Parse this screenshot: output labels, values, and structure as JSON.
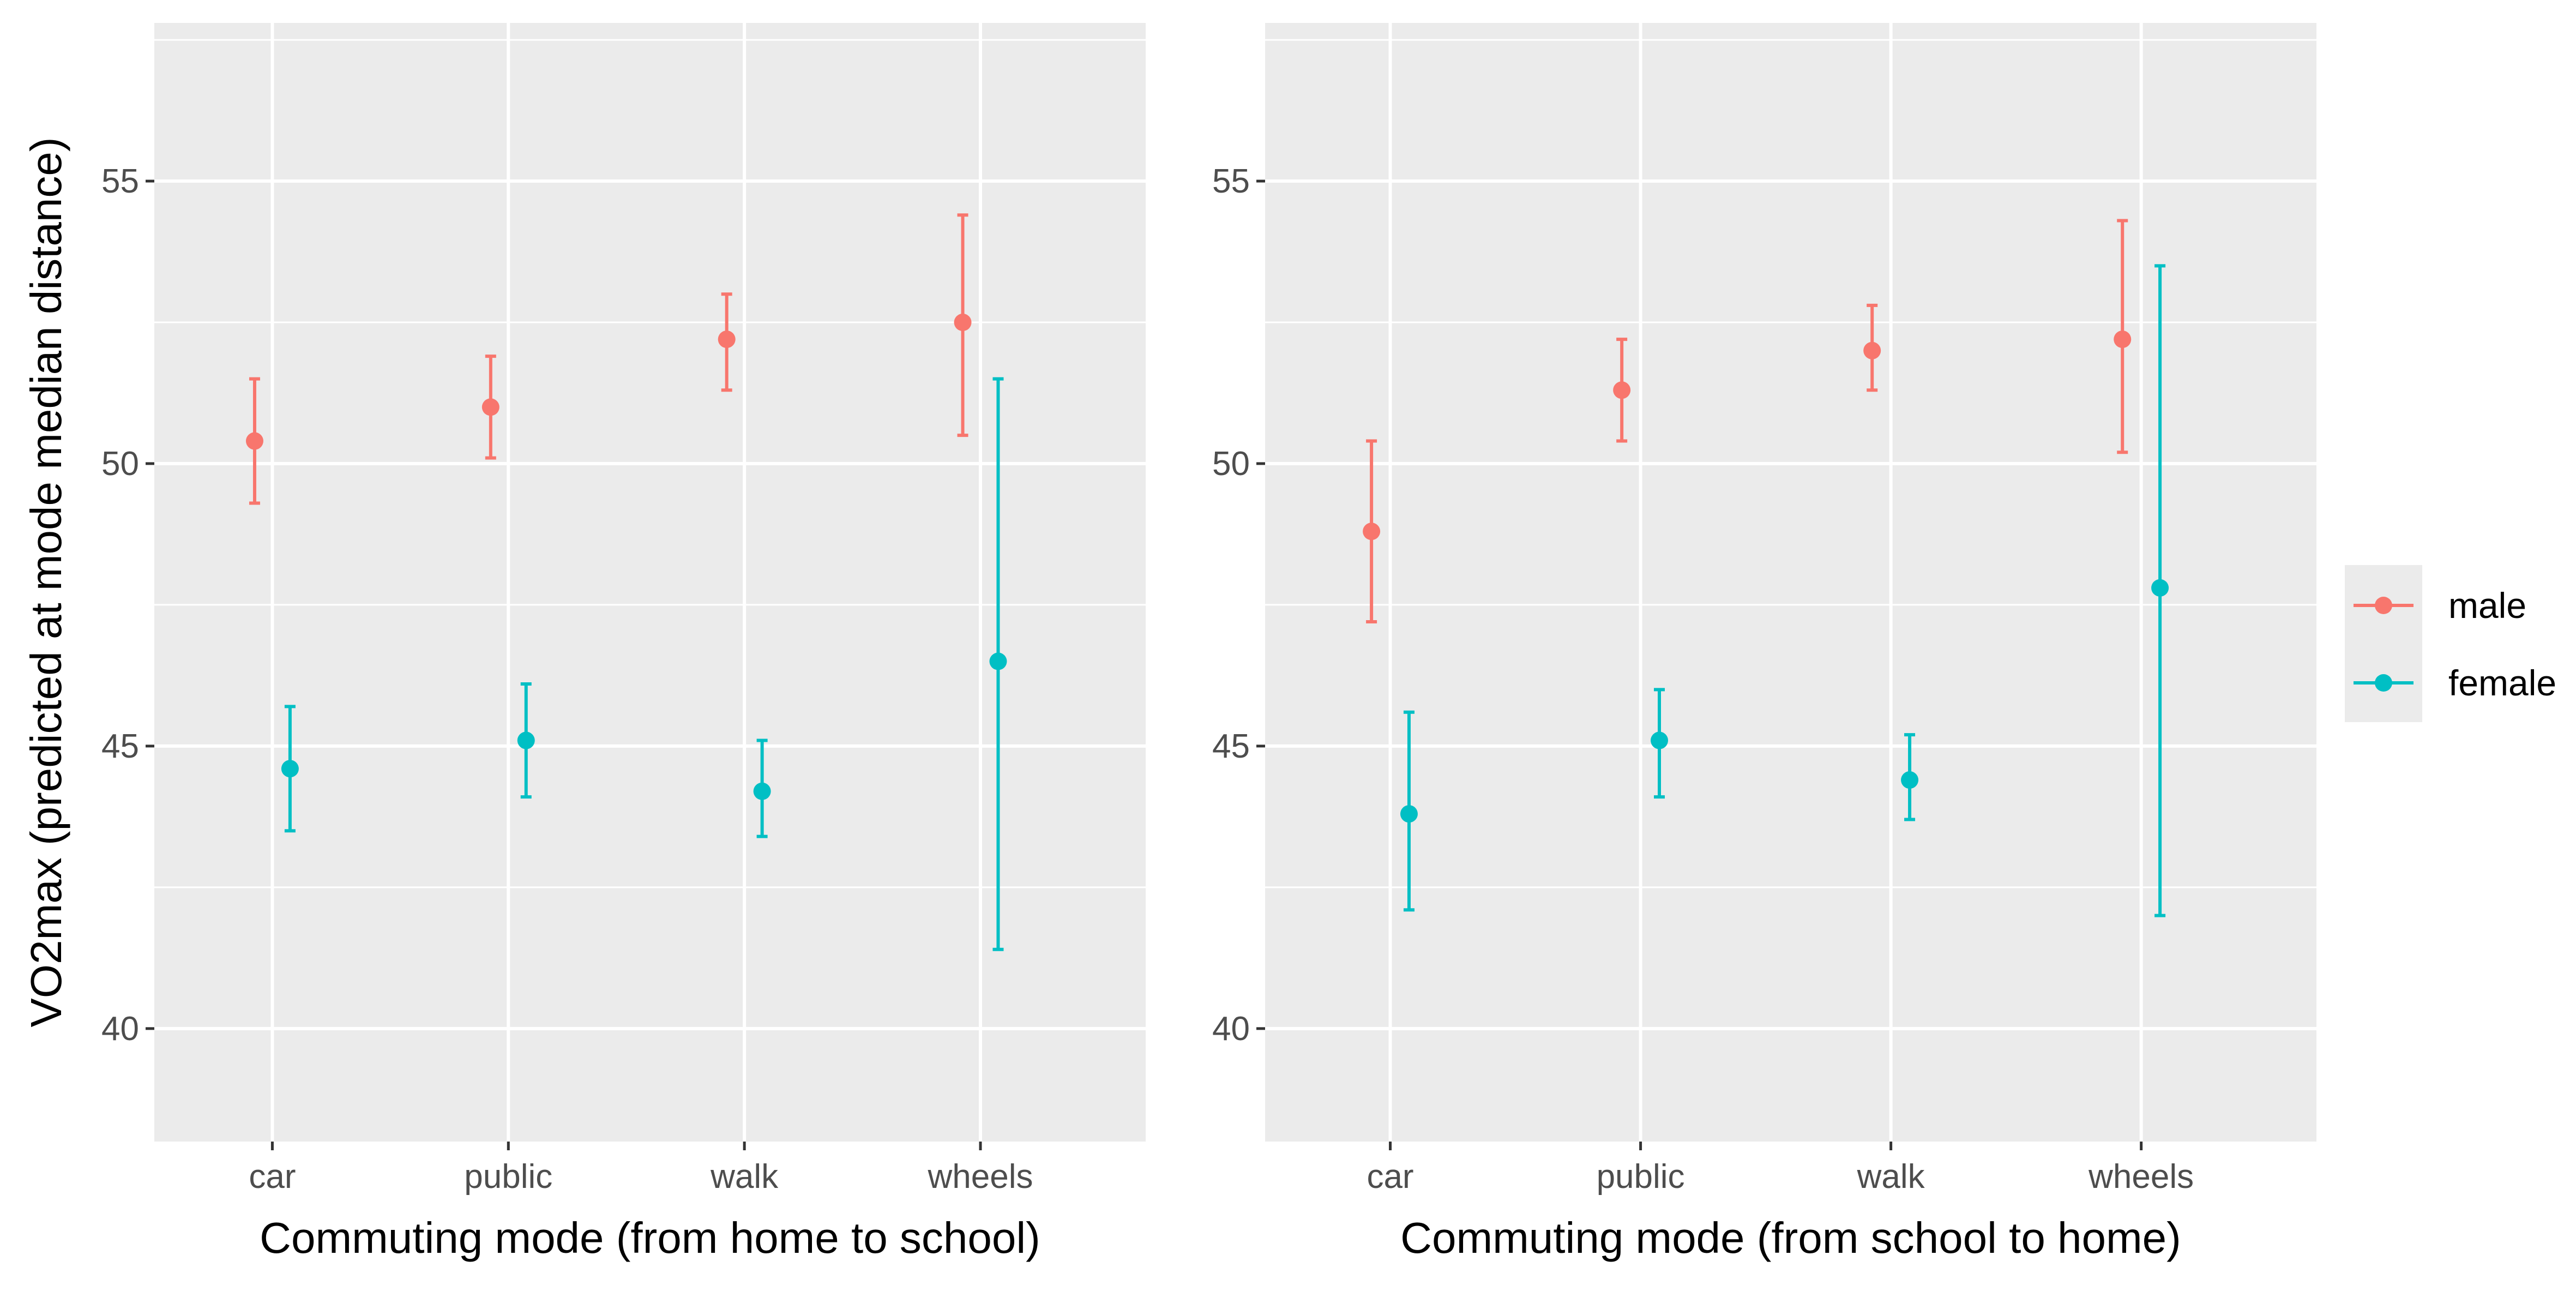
{
  "chart_data": [
    {
      "type": "errorbar",
      "title": "",
      "xlabel": "Commuting mode (from home to school)",
      "ylabel": "VO2max (predicted at mode median distance)",
      "categories": [
        "car",
        "public",
        "walk",
        "wheels"
      ],
      "ylim": [
        38,
        57.8
      ],
      "yticks": [
        40,
        45,
        50,
        55
      ],
      "grid": true,
      "series": [
        {
          "name": "male",
          "color": "#F8766D",
          "values": [
            50.4,
            51.0,
            52.2,
            52.5
          ],
          "lower": [
            49.3,
            50.1,
            51.3,
            50.5
          ],
          "upper": [
            51.5,
            51.9,
            53.0,
            54.4
          ]
        },
        {
          "name": "female",
          "color": "#00BFC4",
          "values": [
            44.6,
            45.1,
            44.2,
            46.5
          ],
          "lower": [
            43.5,
            44.1,
            43.4,
            41.4
          ],
          "upper": [
            45.7,
            46.1,
            45.1,
            51.5
          ]
        }
      ]
    },
    {
      "type": "errorbar",
      "title": "",
      "xlabel": "Commuting mode (from school to home)",
      "ylabel": "",
      "categories": [
        "car",
        "public",
        "walk",
        "wheels"
      ],
      "ylim": [
        38,
        57.8
      ],
      "yticks": [
        40,
        45,
        50,
        55
      ],
      "grid": true,
      "series": [
        {
          "name": "male",
          "color": "#F8766D",
          "values": [
            48.8,
            51.3,
            52.0,
            52.2
          ],
          "lower": [
            47.2,
            50.4,
            51.3,
            50.2
          ],
          "upper": [
            50.4,
            52.2,
            52.8,
            54.3
          ]
        },
        {
          "name": "female",
          "color": "#00BFC4",
          "values": [
            43.8,
            45.1,
            44.4,
            47.8
          ],
          "lower": [
            42.1,
            44.1,
            43.7,
            42.0
          ],
          "upper": [
            45.6,
            46.0,
            45.2,
            53.5
          ]
        }
      ]
    }
  ],
  "legend": {
    "position": "right",
    "items": [
      {
        "label": "male",
        "color": "#F8766D"
      },
      {
        "label": "female",
        "color": "#00BFC4"
      }
    ]
  }
}
